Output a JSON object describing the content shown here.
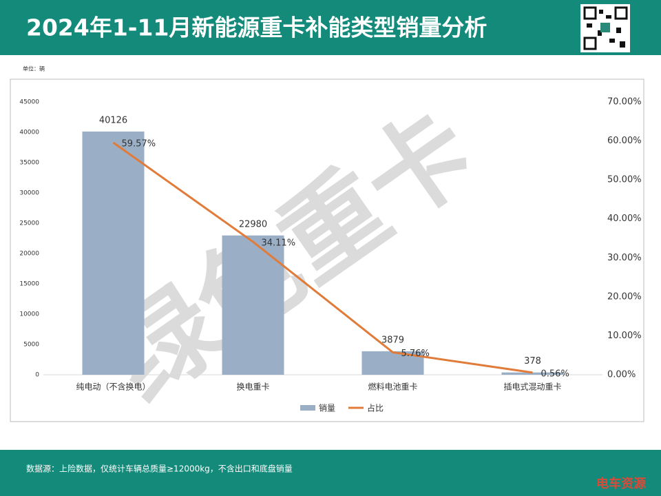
{
  "header": {
    "title": "2024年1-11月新能源重卡补能类型销量分析"
  },
  "unit": "单位：辆",
  "watermark": "绿色重卡",
  "chart_data": {
    "type": "bar",
    "categories": [
      "纯电动（不含换电）",
      "换电重卡",
      "燃料电池重卡",
      "插电式混动重卡"
    ],
    "series": [
      {
        "name": "销量",
        "type": "bar",
        "color": "#9aafc6",
        "values": [
          40126,
          22980,
          3879,
          378
        ]
      },
      {
        "name": "占比",
        "type": "line",
        "axis": "y2",
        "color": "#e07b39",
        "values": [
          59.57,
          34.11,
          5.76,
          0.56
        ],
        "value_labels": [
          "59.57%",
          "34.11%",
          "5.76%",
          "0.56%"
        ]
      }
    ],
    "ylim": [
      0,
      45000
    ],
    "yticks": [
      0,
      5000,
      10000,
      15000,
      20000,
      25000,
      30000,
      35000,
      40000,
      45000
    ],
    "y2lim": [
      0,
      70
    ],
    "y2ticks": [
      {
        "value": 0,
        "label": "0.00%"
      },
      {
        "value": 10,
        "label": "10.00%"
      },
      {
        "value": 20,
        "label": "20.00%"
      },
      {
        "value": 30,
        "label": "30.00%"
      },
      {
        "value": 40,
        "label": "40.00%"
      },
      {
        "value": 50,
        "label": "50.00%"
      },
      {
        "value": 60,
        "label": "60.00%"
      },
      {
        "value": 70,
        "label": "70.00%"
      }
    ],
    "legend": "bottom"
  },
  "footer": {
    "source": "数据源：上险数据，仅统计车辆总质量≥12000kg，不含出口和底盘销量",
    "brand": "电车资源"
  }
}
